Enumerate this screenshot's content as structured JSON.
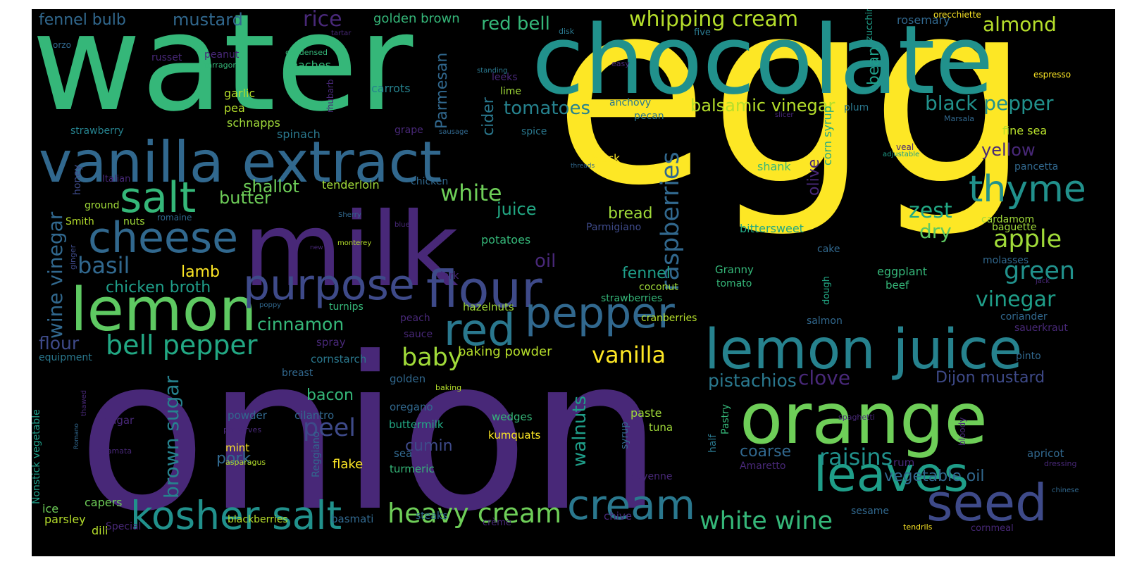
{
  "words": [
    {
      "text": "egg",
      "color": "#fde725"
    },
    {
      "text": "onion",
      "color": "#482878"
    },
    {
      "text": "water",
      "color": "#35b779"
    },
    {
      "text": "chocolate",
      "color": "#21918c"
    },
    {
      "text": "milk",
      "color": "#482878"
    },
    {
      "text": "vanilla extract",
      "color": "#31688e"
    },
    {
      "text": "orange",
      "color": "#6ece58"
    },
    {
      "text": "lemon juice",
      "color": "#26828e"
    },
    {
      "text": "lemon",
      "color": "#5ec962"
    },
    {
      "text": "purpose",
      "color": "#3e4a89"
    },
    {
      "text": "flour",
      "color": "#3e4a89"
    },
    {
      "text": "pepper",
      "color": "#31688e"
    },
    {
      "text": "cheese",
      "color": "#31688e"
    },
    {
      "text": "salt",
      "color": "#35b779"
    },
    {
      "text": "red",
      "color": "#2a788e"
    },
    {
      "text": "leaves",
      "color": "#1f9e89"
    },
    {
      "text": "seed",
      "color": "#3e4a89"
    },
    {
      "text": "cream",
      "color": "#2a788e"
    },
    {
      "text": "thyme",
      "color": "#21918c"
    },
    {
      "text": "kosher salt",
      "color": "#21918c"
    },
    {
      "text": "heavy cream",
      "color": "#6ece58"
    },
    {
      "text": "white wine",
      "color": "#35b779"
    },
    {
      "text": "bell pepper",
      "color": "#22a884"
    },
    {
      "text": "vanilla",
      "color": "#fde725"
    },
    {
      "text": "raspberries",
      "color": "#31688e"
    },
    {
      "text": "whipping cream",
      "color": "#b5de2b"
    },
    {
      "text": "black pepper",
      "color": "#21918c"
    },
    {
      "text": "balsamic vinegar",
      "color": "#b5de2b"
    },
    {
      "text": "tomatoes",
      "color": "#26828e"
    },
    {
      "text": "basil",
      "color": "#31688e"
    },
    {
      "text": "brown sugar",
      "color": "#26828e"
    },
    {
      "text": "apple",
      "color": "#a0da39"
    },
    {
      "text": "green",
      "color": "#21918c"
    },
    {
      "text": "vinegar",
      "color": "#1f9e89"
    },
    {
      "text": "raisins",
      "color": "#21918c"
    },
    {
      "text": "peel",
      "color": "#3e4a89"
    },
    {
      "text": "baby",
      "color": "#a0da39"
    },
    {
      "text": "cinnamon",
      "color": "#35b779"
    },
    {
      "text": "white",
      "color": "#6ece58"
    },
    {
      "text": "almond",
      "color": "#b5de2b"
    },
    {
      "text": "zest",
      "color": "#22a884"
    },
    {
      "text": "wine vinegar",
      "color": "#31688e"
    },
    {
      "text": "flour",
      "color": "#3e4a89"
    },
    {
      "text": "chicken broth",
      "color": "#1f9e89"
    },
    {
      "text": "walnuts",
      "color": "#1f9e89"
    },
    {
      "text": "clove",
      "color": "#482878"
    },
    {
      "text": "Dijon mustard",
      "color": "#3e4a89"
    },
    {
      "text": "pistachios",
      "color": "#2a788e"
    },
    {
      "text": "vegetable oil",
      "color": "#31688e"
    },
    {
      "text": "bacon",
      "color": "#35b779"
    },
    {
      "text": "pork",
      "color": "#31688e"
    },
    {
      "text": "shallot",
      "color": "#6ece58"
    },
    {
      "text": "butter",
      "color": "#6ece58"
    },
    {
      "text": "rice",
      "color": "#482878"
    },
    {
      "text": "red bell",
      "color": "#35b779"
    },
    {
      "text": "mustard",
      "color": "#31688e"
    },
    {
      "text": "fennel bulb",
      "color": "#31688e"
    },
    {
      "text": "golden brown",
      "color": "#35b779"
    },
    {
      "text": "Parmesan",
      "color": "#31688e"
    },
    {
      "text": "cider",
      "color": "#2a788e"
    },
    {
      "text": "juice",
      "color": "#22a884"
    },
    {
      "text": "bread",
      "color": "#a0da39"
    },
    {
      "text": "oil",
      "color": "#482878"
    },
    {
      "text": "dry",
      "color": "#5ec962"
    },
    {
      "text": "olive",
      "color": "#482878"
    },
    {
      "text": "corn syrup",
      "color": "#22a884"
    },
    {
      "text": "yellow",
      "color": "#482878"
    },
    {
      "text": "fennel",
      "color": "#1f9e89"
    },
    {
      "text": "lamb",
      "color": "#fde725"
    },
    {
      "text": "cumin",
      "color": "#3e4a89"
    },
    {
      "text": "coarse",
      "color": "#31688e"
    },
    {
      "text": "baking powder",
      "color": "#b5de2b"
    },
    {
      "text": "bean",
      "color": "#1f9e89"
    },
    {
      "text": "tenderloin",
      "color": "#a0da39"
    },
    {
      "text": "garlic",
      "color": "#b5de2b"
    },
    {
      "text": "pea",
      "color": "#b5de2b"
    },
    {
      "text": "peaches",
      "color": "#35b779"
    },
    {
      "text": "carrots",
      "color": "#26828e"
    },
    {
      "text": "schnapps",
      "color": "#a0da39"
    },
    {
      "text": "spinach",
      "color": "#2a788e"
    },
    {
      "text": "strawberry",
      "color": "#26828e"
    },
    {
      "text": "russet",
      "color": "#482878"
    },
    {
      "text": "peanut",
      "color": "#482878"
    },
    {
      "text": "tartar",
      "color": "#482878"
    },
    {
      "text": "orzo",
      "color": "#31688e"
    },
    {
      "text": "condensed",
      "color": "#35b779"
    },
    {
      "text": "tarragon",
      "color": "#35b779"
    },
    {
      "text": "rhubarb",
      "color": "#482878"
    },
    {
      "text": "leeks",
      "color": "#482878"
    },
    {
      "text": "lime",
      "color": "#a0da39"
    },
    {
      "text": "anchovy",
      "color": "#2a788e"
    },
    {
      "text": "pecan",
      "color": "#2a788e"
    },
    {
      "text": "grape",
      "color": "#482878"
    },
    {
      "text": "spice",
      "color": "#2a788e"
    },
    {
      "text": "sausage",
      "color": "#31688e"
    },
    {
      "text": "standing",
      "color": "#2a788e"
    },
    {
      "text": "disk",
      "color": "#2a788e"
    },
    {
      "text": "five",
      "color": "#2a788e"
    },
    {
      "text": "easy",
      "color": "#482878"
    },
    {
      "text": "zucchini",
      "color": "#1f9e89"
    },
    {
      "text": "rosemary",
      "color": "#31688e"
    },
    {
      "text": "orecchiette",
      "color": "#fde725"
    },
    {
      "text": "espresso",
      "color": "#fde725"
    },
    {
      "text": "plum",
      "color": "#2a788e"
    },
    {
      "text": "slicer",
      "color": "#482878"
    },
    {
      "text": "Marsala",
      "color": "#31688e"
    },
    {
      "text": "fine sea",
      "color": "#b5de2b"
    },
    {
      "text": "veal",
      "color": "#482878"
    },
    {
      "text": "adjustable",
      "color": "#1f9e89"
    },
    {
      "text": "pancetta",
      "color": "#31688e"
    },
    {
      "text": "shank",
      "color": "#35b779"
    },
    {
      "text": "black",
      "color": "#fde725"
    },
    {
      "text": "threads",
      "color": "#31688e"
    },
    {
      "text": "Italian",
      "color": "#482878"
    },
    {
      "text": "honey",
      "color": "#3e4a89"
    },
    {
      "text": "ground",
      "color": "#a0da39"
    },
    {
      "text": "Smith",
      "color": "#b5de2b"
    },
    {
      "text": "nuts",
      "color": "#a0da39"
    },
    {
      "text": "romaine",
      "color": "#31688e"
    },
    {
      "text": "chicken",
      "color": "#31688e"
    },
    {
      "text": "Sherry",
      "color": "#31688e"
    },
    {
      "text": "blue",
      "color": "#482878"
    },
    {
      "text": "bittersweet",
      "color": "#22a884"
    },
    {
      "text": "Parmigiano",
      "color": "#3e4a89"
    },
    {
      "text": "baguette",
      "color": "#a0da39"
    },
    {
      "text": "cardamom",
      "color": "#a0da39"
    },
    {
      "text": "ginger",
      "color": "#3e4a89"
    },
    {
      "text": "new",
      "color": "#482878"
    },
    {
      "text": "monterey",
      "color": "#b5de2b"
    },
    {
      "text": "potatoes",
      "color": "#35b779"
    },
    {
      "text": "cake",
      "color": "#31688e"
    },
    {
      "text": "molasses",
      "color": "#31688e"
    },
    {
      "text": "Granny",
      "color": "#35b779"
    },
    {
      "text": "tomato",
      "color": "#35b779"
    },
    {
      "text": "eggplant",
      "color": "#35b779"
    },
    {
      "text": "beef",
      "color": "#35b779"
    },
    {
      "text": "jack",
      "color": "#482878"
    },
    {
      "text": "dark",
      "color": "#482878"
    },
    {
      "text": "poppy",
      "color": "#31688e"
    },
    {
      "text": "turnips",
      "color": "#35b779"
    },
    {
      "text": "hazelnuts",
      "color": "#a0da39"
    },
    {
      "text": "coconut",
      "color": "#a0da39"
    },
    {
      "text": "strawberries",
      "color": "#35b779"
    },
    {
      "text": "dough",
      "color": "#22a884"
    },
    {
      "text": "salmon",
      "color": "#31688e"
    },
    {
      "text": "peach",
      "color": "#482878"
    },
    {
      "text": "sauce",
      "color": "#482878"
    },
    {
      "text": "cranberries",
      "color": "#b5de2b"
    },
    {
      "text": "coriander",
      "color": "#31688e"
    },
    {
      "text": "sauerkraut",
      "color": "#482878"
    },
    {
      "text": "spray",
      "color": "#482878"
    },
    {
      "text": "pinto",
      "color": "#31688e"
    },
    {
      "text": "equipment",
      "color": "#2a788e"
    },
    {
      "text": "cornstarch",
      "color": "#2a788e"
    },
    {
      "text": "breast",
      "color": "#31688e"
    },
    {
      "text": "golden",
      "color": "#31688e"
    },
    {
      "text": "baking",
      "color": "#b5de2b"
    },
    {
      "text": "oregano",
      "color": "#31688e"
    },
    {
      "text": "buttermilk",
      "color": "#22a884"
    },
    {
      "text": "cilantro",
      "color": "#31688e"
    },
    {
      "text": "powder",
      "color": "#31688e"
    },
    {
      "text": "preserves",
      "color": "#482878"
    },
    {
      "text": "sugar",
      "color": "#482878"
    },
    {
      "text": "Nonstick vegetable",
      "color": "#1f9e89"
    },
    {
      "text": "thawed",
      "color": "#482878"
    },
    {
      "text": "Romano",
      "color": "#31688e"
    },
    {
      "text": "Kalamata",
      "color": "#482878"
    },
    {
      "text": "mint",
      "color": "#fde725"
    },
    {
      "text": "asparagus",
      "color": "#b5de2b"
    },
    {
      "text": "sea",
      "color": "#31688e"
    },
    {
      "text": "turmeric",
      "color": "#35b779"
    },
    {
      "text": "wedges",
      "color": "#35b779"
    },
    {
      "text": "kumquats",
      "color": "#fde725"
    },
    {
      "text": "paste",
      "color": "#a0da39"
    },
    {
      "text": "tuna",
      "color": "#a0da39"
    },
    {
      "text": "syrup",
      "color": "#31688e"
    },
    {
      "text": "half",
      "color": "#2a788e"
    },
    {
      "text": "Pastry",
      "color": "#35b779"
    },
    {
      "text": "spaghetti",
      "color": "#482878"
    },
    {
      "text": "bloody",
      "color": "#482878"
    },
    {
      "text": "Amaretto",
      "color": "#482878"
    },
    {
      "text": "rum",
      "color": "#482878"
    },
    {
      "text": "apricot",
      "color": "#31688e"
    },
    {
      "text": "dressing",
      "color": "#482878"
    },
    {
      "text": "flake",
      "color": "#fde725"
    },
    {
      "text": "Reggiano",
      "color": "#31688e"
    },
    {
      "text": "cayenne",
      "color": "#482878"
    },
    {
      "text": "capers",
      "color": "#6ece58"
    },
    {
      "text": "ice",
      "color": "#6ece58"
    },
    {
      "text": "parsley",
      "color": "#b5de2b"
    },
    {
      "text": "dill",
      "color": "#b5de2b"
    },
    {
      "text": "blackberries",
      "color": "#b5de2b"
    },
    {
      "text": "basmati",
      "color": "#31688e"
    },
    {
      "text": "steaks",
      "color": "#31688e"
    },
    {
      "text": "Special",
      "color": "#482878"
    },
    {
      "text": "crème",
      "color": "#482878"
    },
    {
      "text": "chive",
      "color": "#482878"
    },
    {
      "text": "sesame",
      "color": "#31688e"
    },
    {
      "text": "tendrils",
      "color": "#fde725"
    },
    {
      "text": "cornmeal",
      "color": "#482878"
    },
    {
      "text": "chinese",
      "color": "#31688e"
    }
  ]
}
